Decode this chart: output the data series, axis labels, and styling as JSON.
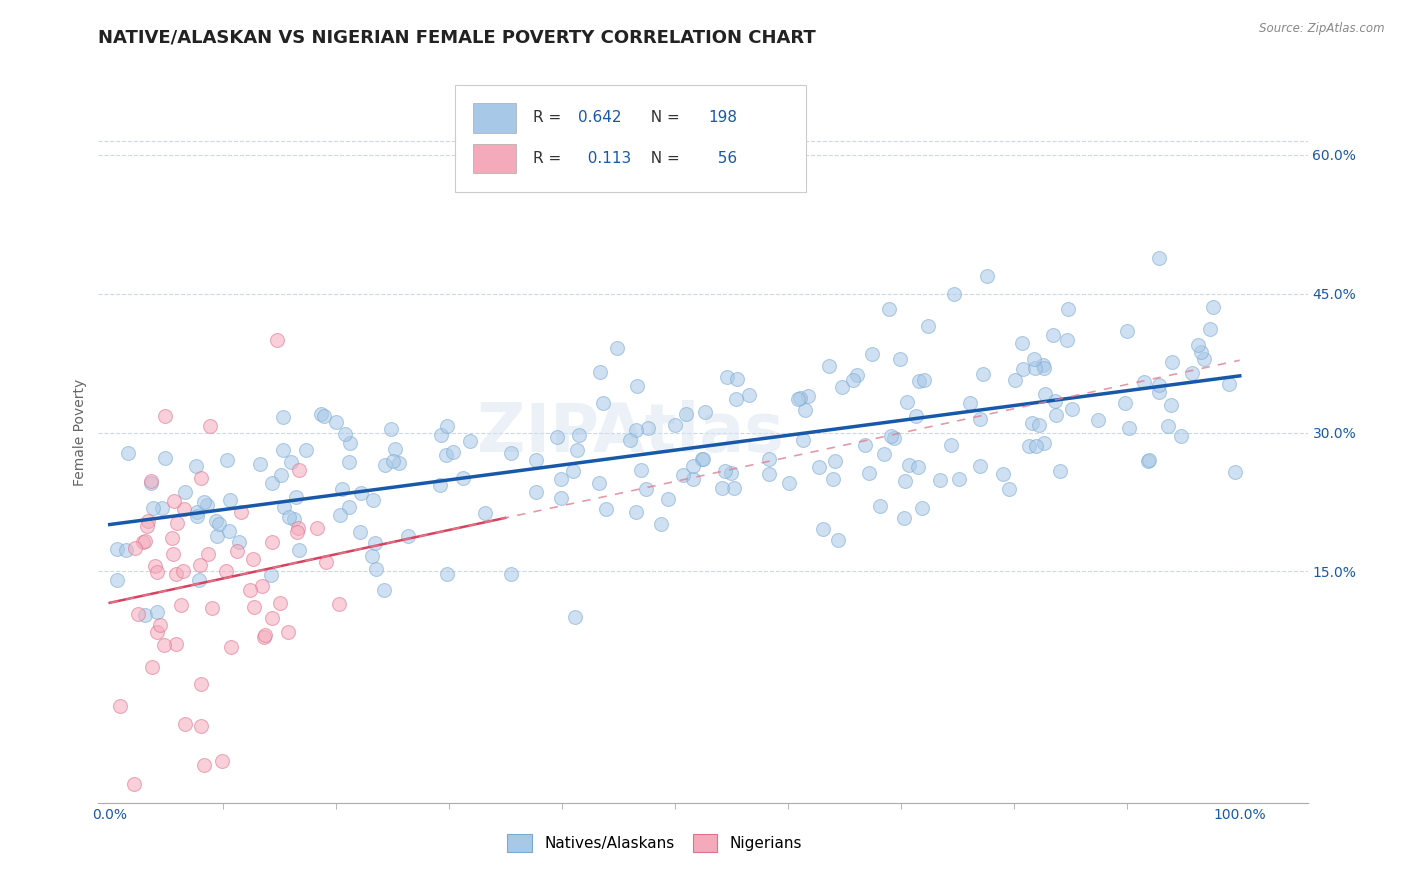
{
  "title": "NATIVE/ALASKAN VS NIGERIAN FEMALE POVERTY CORRELATION CHART",
  "source": "Source: ZipAtlas.com",
  "ylabel": "Female Poverty",
  "x_tick_labels_left": "0.0%",
  "x_tick_labels_right": "100.0%",
  "y_ticks": [
    0.15,
    0.3,
    0.45,
    0.6
  ],
  "y_tick_labels": [
    "15.0%",
    "30.0%",
    "45.0%",
    "60.0%"
  ],
  "xlim": [
    -0.01,
    1.06
  ],
  "ylim": [
    -0.1,
    0.7
  ],
  "blue_dot_color": "#a8c8e8",
  "blue_dot_edge": "#7aaad0",
  "pink_dot_color": "#f5aabb",
  "pink_dot_edge": "#e07090",
  "blue_line_color": "#1858a8",
  "pink_line_color": "#d84060",
  "pink_dash_color": "#e08090",
  "R_blue": 0.642,
  "N_blue": 198,
  "R_pink": 0.113,
  "N_pink": 56,
  "legend_label_blue": "Natives/Alaskans",
  "legend_label_pink": "Nigerians",
  "watermark_text": "ZIPAtlas",
  "title_fontsize": 13,
  "axis_label_fontsize": 10,
  "tick_fontsize": 10,
  "stat_fontsize": 11,
  "background_color": "#ffffff",
  "grid_color": "#c8d4e4",
  "scatter_size": 100,
  "scatter_alpha": 0.55
}
